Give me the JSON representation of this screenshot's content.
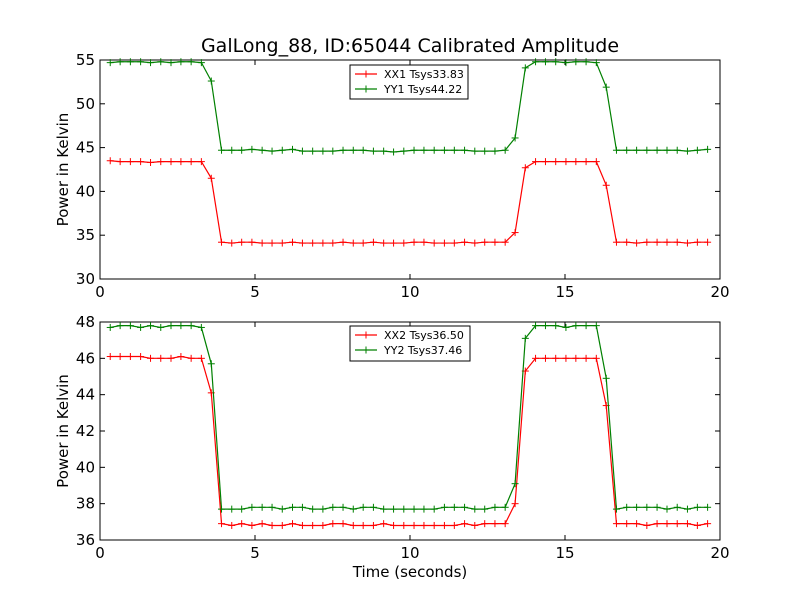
{
  "chart_data": [
    {
      "type": "line",
      "title": "GalLong_88, ID:65044 Calibrated Amplitude",
      "xlabel": "",
      "ylabel": "Power in Kelvin",
      "xlim": [
        0,
        20
      ],
      "ylim": [
        30,
        55
      ],
      "xticks": [
        0,
        5,
        10,
        15,
        20
      ],
      "yticks": [
        30,
        35,
        40,
        45,
        50,
        55
      ],
      "legend_position": "top-center",
      "x": [
        0.33,
        0.65,
        0.98,
        1.31,
        1.63,
        1.96,
        2.29,
        2.61,
        2.94,
        3.27,
        3.59,
        3.92,
        4.25,
        4.57,
        4.9,
        5.23,
        5.55,
        5.88,
        6.21,
        6.53,
        6.86,
        7.19,
        7.51,
        7.84,
        8.17,
        8.49,
        8.82,
        9.15,
        9.47,
        9.8,
        10.13,
        10.45,
        10.78,
        11.11,
        11.43,
        11.76,
        12.09,
        12.41,
        12.74,
        13.07,
        13.39,
        13.72,
        14.05,
        14.37,
        14.7,
        15.03,
        15.35,
        15.68,
        16.01,
        16.33,
        16.66,
        16.99,
        17.31,
        17.64,
        17.97,
        18.29,
        18.62,
        18.95,
        19.27,
        19.6
      ],
      "series": [
        {
          "name": "XX1 Tsys33.83",
          "color": "#ff0000",
          "values": [
            43.5,
            43.4,
            43.4,
            43.4,
            43.3,
            43.4,
            43.4,
            43.4,
            43.4,
            43.4,
            41.5,
            34.2,
            34.1,
            34.2,
            34.2,
            34.1,
            34.1,
            34.1,
            34.2,
            34.1,
            34.1,
            34.1,
            34.1,
            34.2,
            34.1,
            34.1,
            34.2,
            34.1,
            34.1,
            34.1,
            34.2,
            34.2,
            34.1,
            34.1,
            34.1,
            34.2,
            34.1,
            34.2,
            34.2,
            34.2,
            35.3,
            42.7,
            43.4,
            43.4,
            43.4,
            43.4,
            43.4,
            43.4,
            43.4,
            40.7,
            34.2,
            34.2,
            34.1,
            34.2,
            34.2,
            34.2,
            34.2,
            34.1,
            34.2,
            34.2
          ]
        },
        {
          "name": "YY1 Tsys44.22",
          "color": "#008000",
          "values": [
            54.7,
            54.8,
            54.8,
            54.8,
            54.7,
            54.8,
            54.7,
            54.8,
            54.8,
            54.7,
            52.6,
            44.7,
            44.7,
            44.7,
            44.8,
            44.7,
            44.6,
            44.7,
            44.8,
            44.6,
            44.6,
            44.6,
            44.6,
            44.7,
            44.7,
            44.7,
            44.6,
            44.6,
            44.5,
            44.6,
            44.7,
            44.7,
            44.7,
            44.7,
            44.7,
            44.7,
            44.6,
            44.6,
            44.6,
            44.7,
            46.1,
            54.1,
            54.8,
            54.8,
            54.8,
            54.7,
            54.8,
            54.8,
            54.7,
            51.9,
            44.7,
            44.7,
            44.7,
            44.7,
            44.7,
            44.7,
            44.7,
            44.6,
            44.7,
            44.8
          ]
        }
      ]
    },
    {
      "type": "line",
      "title": "",
      "xlabel": "Time (seconds)",
      "ylabel": "Power in Kelvin",
      "xlim": [
        0,
        20
      ],
      "ylim": [
        36,
        48
      ],
      "xticks": [
        0,
        5,
        10,
        15,
        20
      ],
      "yticks": [
        36,
        38,
        40,
        42,
        44,
        46,
        48
      ],
      "legend_position": "top-center",
      "x": [
        0.33,
        0.65,
        0.98,
        1.31,
        1.63,
        1.96,
        2.29,
        2.61,
        2.94,
        3.27,
        3.59,
        3.92,
        4.25,
        4.57,
        4.9,
        5.23,
        5.55,
        5.88,
        6.21,
        6.53,
        6.86,
        7.19,
        7.51,
        7.84,
        8.17,
        8.49,
        8.82,
        9.15,
        9.47,
        9.8,
        10.13,
        10.45,
        10.78,
        11.11,
        11.43,
        11.76,
        12.09,
        12.41,
        12.74,
        13.07,
        13.39,
        13.72,
        14.05,
        14.37,
        14.7,
        15.03,
        15.35,
        15.68,
        16.01,
        16.33,
        16.66,
        16.99,
        17.31,
        17.64,
        17.97,
        18.29,
        18.62,
        18.95,
        19.27,
        19.6
      ],
      "series": [
        {
          "name": "XX2 Tsys36.50",
          "color": "#ff0000",
          "values": [
            46.1,
            46.1,
            46.1,
            46.1,
            46.0,
            46.0,
            46.0,
            46.1,
            46.0,
            46.0,
            44.1,
            36.9,
            36.8,
            36.9,
            36.8,
            36.9,
            36.8,
            36.8,
            36.9,
            36.8,
            36.8,
            36.8,
            36.9,
            36.9,
            36.8,
            36.8,
            36.8,
            36.9,
            36.8,
            36.8,
            36.8,
            36.8,
            36.8,
            36.8,
            36.8,
            36.9,
            36.8,
            36.9,
            36.9,
            36.9,
            38.0,
            45.3,
            46.0,
            46.0,
            46.0,
            46.0,
            46.0,
            46.0,
            46.0,
            43.4,
            36.9,
            36.9,
            36.9,
            36.8,
            36.9,
            36.9,
            36.9,
            36.9,
            36.8,
            36.9
          ]
        },
        {
          "name": "YY2 Tsys37.46",
          "color": "#008000",
          "values": [
            47.7,
            47.8,
            47.8,
            47.7,
            47.8,
            47.7,
            47.8,
            47.8,
            47.8,
            47.7,
            45.7,
            37.7,
            37.7,
            37.7,
            37.8,
            37.8,
            37.8,
            37.7,
            37.8,
            37.8,
            37.7,
            37.7,
            37.8,
            37.8,
            37.7,
            37.8,
            37.8,
            37.7,
            37.7,
            37.7,
            37.7,
            37.7,
            37.7,
            37.8,
            37.8,
            37.8,
            37.7,
            37.7,
            37.8,
            37.8,
            39.1,
            47.1,
            47.8,
            47.8,
            47.8,
            47.7,
            47.8,
            47.8,
            47.8,
            44.9,
            37.7,
            37.8,
            37.8,
            37.8,
            37.8,
            37.7,
            37.8,
            37.7,
            37.8,
            37.8
          ]
        }
      ]
    }
  ]
}
